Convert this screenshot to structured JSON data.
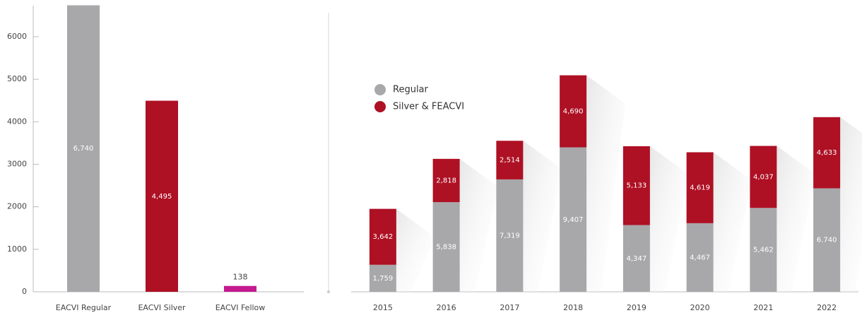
{
  "chart_data": [
    {
      "type": "bar",
      "categories": [
        "EACVI Regular",
        "EACVI Silver",
        "EACVI Fellow"
      ],
      "values": [
        6740,
        4495,
        138
      ],
      "value_labels": [
        "6,740",
        "4,495",
        "138"
      ],
      "colors": [
        "#a8a7aa",
        "#ae1024",
        "#c4198f"
      ],
      "ylim": [
        0,
        6000
      ],
      "yticks": [
        0,
        1000,
        2000,
        3000,
        4000,
        5000,
        6000
      ]
    },
    {
      "type": "stacked_bar",
      "categories": [
        "2015",
        "2016",
        "2017",
        "2018",
        "2019",
        "2020",
        "2021",
        "2022"
      ],
      "series": [
        {
          "name": "Regular",
          "color": "#a8a7aa",
          "values": [
            1759,
            5838,
            7319,
            9407,
            4347,
            4467,
            5462,
            6740
          ],
          "value_labels": [
            "1,759",
            "5,838",
            "7,319",
            "9,407",
            "4,347",
            "4,467",
            "5,462",
            "6.740"
          ]
        },
        {
          "name": "Silver & FEACVI",
          "color": "#ae1024",
          "values": [
            3642,
            2818,
            2514,
            4690,
            5133,
            4619,
            4037,
            4633
          ],
          "value_labels": [
            "3,642",
            "2,818",
            "2,514",
            "4,690",
            "5,133",
            "4,619",
            "4,037",
            "4,633"
          ]
        }
      ],
      "ylim": [
        0,
        19000
      ]
    }
  ]
}
